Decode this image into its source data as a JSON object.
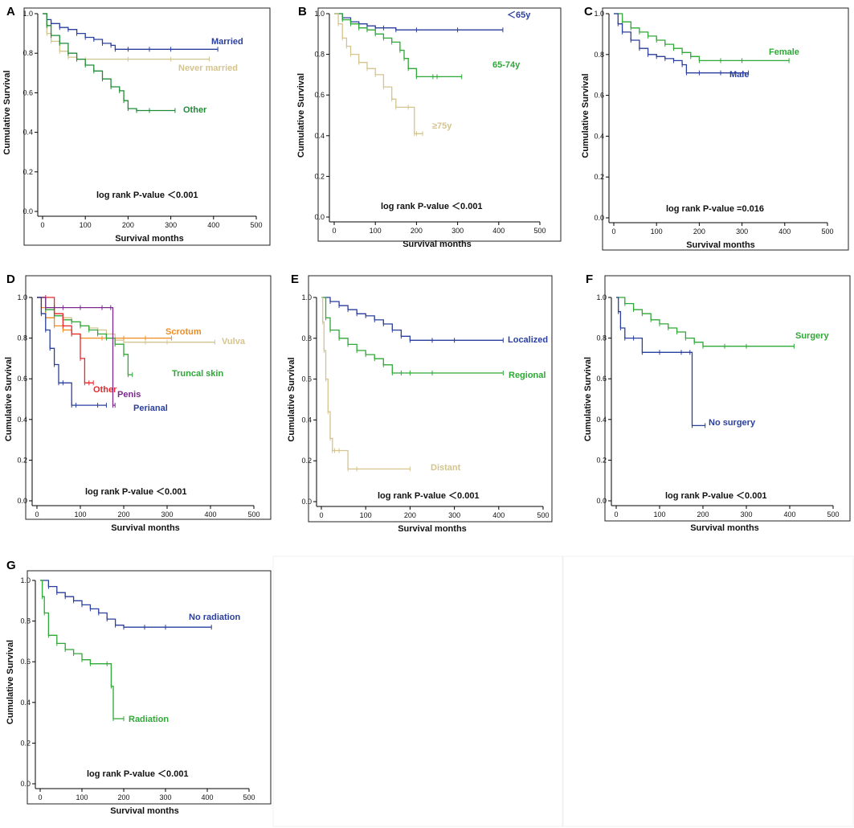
{
  "chart_data": [
    {
      "panel": "A",
      "type": "line",
      "xlabel": "Survival months",
      "ylabel": "Cumulative Survival",
      "xlim": [
        0,
        500
      ],
      "ylim": [
        0,
        1
      ],
      "xticks": [
        "0",
        "100",
        "200",
        "300",
        "400",
        "500"
      ],
      "yticks": [
        "0.0",
        "0.2",
        "0.4",
        "0.6",
        "0.8",
        "1.0"
      ],
      "pvalue_text": "log rank P-value ＜0.001",
      "series": [
        {
          "name": "Married",
          "color": "#2a3f9e",
          "x": [
            0,
            10,
            20,
            40,
            60,
            80,
            100,
            120,
            140,
            160,
            170,
            200,
            250,
            300,
            410
          ],
          "y": [
            1,
            0.97,
            0.95,
            0.93,
            0.92,
            0.9,
            0.88,
            0.87,
            0.85,
            0.84,
            0.82,
            0.82,
            0.82,
            0.82,
            0.82
          ]
        },
        {
          "name": "Never married",
          "color": "#d4c48e",
          "x": [
            0,
            10,
            20,
            40,
            60,
            80,
            100,
            200,
            300,
            390
          ],
          "y": [
            1,
            0.9,
            0.86,
            0.81,
            0.78,
            0.77,
            0.77,
            0.77,
            0.77,
            0.77
          ]
        },
        {
          "name": "Other",
          "color": "#1e8c36",
          "x": [
            0,
            10,
            20,
            40,
            60,
            80,
            100,
            120,
            140,
            160,
            180,
            190,
            200,
            220,
            250,
            310
          ],
          "y": [
            1,
            0.94,
            0.89,
            0.85,
            0.8,
            0.77,
            0.74,
            0.71,
            0.67,
            0.63,
            0.61,
            0.56,
            0.52,
            0.51,
            0.51,
            0.51
          ]
        }
      ]
    },
    {
      "panel": "B",
      "type": "line",
      "xlabel": "Survival months",
      "ylabel": "Cumulative Survival",
      "xlim": [
        0,
        500
      ],
      "ylim": [
        0,
        1
      ],
      "xticks": [
        "0",
        "100",
        "200",
        "300",
        "400",
        "500"
      ],
      "yticks": [
        "0.0",
        "0.2",
        "0.4",
        "0.6",
        "0.8",
        "1.0"
      ],
      "pvalue_text": "log rank P-value ＜0.001",
      "series": [
        {
          "name": "＜65y",
          "color": "#2a3f9e",
          "x": [
            0,
            20,
            40,
            60,
            80,
            100,
            120,
            150,
            200,
            300,
            410
          ],
          "y": [
            1,
            0.98,
            0.96,
            0.95,
            0.94,
            0.93,
            0.93,
            0.92,
            0.92,
            0.92,
            0.92
          ]
        },
        {
          "name": "65-74y",
          "color": "#2ea836",
          "x": [
            0,
            20,
            40,
            60,
            80,
            100,
            120,
            140,
            160,
            170,
            180,
            200,
            240,
            250,
            310
          ],
          "y": [
            1,
            0.97,
            0.95,
            0.93,
            0.92,
            0.9,
            0.88,
            0.86,
            0.82,
            0.78,
            0.73,
            0.69,
            0.69,
            0.69,
            0.69
          ]
        },
        {
          "name": "≥75y",
          "color": "#d4c48e",
          "x": [
            0,
            10,
            20,
            30,
            40,
            60,
            80,
            100,
            120,
            140,
            150,
            180,
            195,
            200,
            215
          ],
          "y": [
            1,
            0.95,
            0.88,
            0.84,
            0.8,
            0.76,
            0.73,
            0.7,
            0.64,
            0.58,
            0.54,
            0.54,
            0.41,
            0.41,
            0.41
          ]
        }
      ]
    },
    {
      "panel": "C",
      "type": "line",
      "xlabel": "Survival months",
      "ylabel": "Cumulative Survival",
      "xlim": [
        0,
        500
      ],
      "ylim": [
        0,
        1
      ],
      "xticks": [
        "0",
        "100",
        "200",
        "300",
        "400",
        "500"
      ],
      "yticks": [
        "0.0",
        "0.2",
        "0.4",
        "0.6",
        "0.8",
        "1.0"
      ],
      "pvalue_text": "log rank P-value =0.016",
      "series": [
        {
          "name": "Female",
          "color": "#2ea836",
          "x": [
            0,
            20,
            40,
            60,
            80,
            100,
            120,
            140,
            160,
            180,
            200,
            250,
            300,
            410
          ],
          "y": [
            1,
            0.96,
            0.93,
            0.91,
            0.89,
            0.87,
            0.85,
            0.83,
            0.81,
            0.79,
            0.77,
            0.77,
            0.77,
            0.77
          ]
        },
        {
          "name": "Male",
          "color": "#2a3f9e",
          "x": [
            0,
            10,
            20,
            40,
            60,
            80,
            100,
            120,
            140,
            160,
            170,
            200,
            250,
            315
          ],
          "y": [
            1,
            0.95,
            0.91,
            0.87,
            0.83,
            0.8,
            0.79,
            0.78,
            0.77,
            0.75,
            0.71,
            0.71,
            0.71,
            0.71
          ]
        }
      ]
    },
    {
      "panel": "D",
      "type": "line",
      "xlabel": "Survival months",
      "ylabel": "Cumulative Survival",
      "xlim": [
        0,
        500
      ],
      "ylim": [
        0,
        1
      ],
      "xticks": [
        "0",
        "100",
        "200",
        "300",
        "400",
        "500"
      ],
      "yticks": [
        "0.0",
        "0.2",
        "0.4",
        "0.6",
        "0.8",
        "1.0"
      ],
      "pvalue_text": "log rank P-value ＜0.001",
      "series": [
        {
          "name": "Scrotum",
          "color": "#f08c1e",
          "x": [
            0,
            10,
            20,
            40,
            60,
            80,
            100,
            150,
            200,
            250,
            310
          ],
          "y": [
            1,
            0.95,
            0.9,
            0.86,
            0.84,
            0.82,
            0.8,
            0.8,
            0.8,
            0.8,
            0.8
          ]
        },
        {
          "name": "Vulva",
          "color": "#d4c48e",
          "x": [
            0,
            20,
            40,
            60,
            80,
            100,
            120,
            140,
            160,
            180,
            200,
            250,
            300,
            410
          ],
          "y": [
            1,
            0.95,
            0.92,
            0.9,
            0.88,
            0.86,
            0.85,
            0.84,
            0.82,
            0.79,
            0.78,
            0.78,
            0.78,
            0.78
          ]
        },
        {
          "name": "Truncal skin",
          "color": "#2ea836",
          "x": [
            0,
            20,
            40,
            60,
            80,
            100,
            120,
            140,
            160,
            180,
            200,
            210,
            220
          ],
          "y": [
            1,
            0.94,
            0.91,
            0.89,
            0.88,
            0.86,
            0.84,
            0.82,
            0.8,
            0.77,
            0.72,
            0.62,
            0.62
          ]
        },
        {
          "name": "Other",
          "color": "#e8282d",
          "x": [
            0,
            20,
            40,
            60,
            80,
            100,
            110,
            120,
            130
          ],
          "y": [
            1,
            1,
            0.92,
            0.86,
            0.82,
            0.7,
            0.58,
            0.58,
            0.58
          ]
        },
        {
          "name": "Penis",
          "color": "#7a2a8c",
          "x": [
            0,
            20,
            40,
            60,
            100,
            150,
            170,
            175,
            180
          ],
          "y": [
            1,
            0.95,
            0.95,
            0.95,
            0.95,
            0.95,
            0.95,
            0.47,
            0.47
          ]
        },
        {
          "name": "Perianal",
          "color": "#2a3f9e",
          "x": [
            0,
            10,
            20,
            30,
            40,
            50,
            60,
            80,
            90,
            140,
            160
          ],
          "y": [
            1,
            0.92,
            0.84,
            0.75,
            0.67,
            0.58,
            0.58,
            0.47,
            0.47,
            0.47,
            0.47
          ]
        }
      ]
    },
    {
      "panel": "E",
      "type": "line",
      "xlabel": "Survival months",
      "ylabel": "Cumulative Survival",
      "xlim": [
        0,
        500
      ],
      "ylim": [
        0,
        1
      ],
      "xticks": [
        "0",
        "100",
        "200",
        "300",
        "400",
        "500"
      ],
      "yticks": [
        "0.0",
        "0.2",
        "0.4",
        "0.6",
        "0.8",
        "1.0"
      ],
      "pvalue_text": "log rank P-value ＜0.001",
      "series": [
        {
          "name": "Localized",
          "color": "#2a3f9e",
          "x": [
            0,
            20,
            40,
            60,
            80,
            100,
            120,
            140,
            160,
            180,
            200,
            250,
            300,
            410
          ],
          "y": [
            1,
            0.98,
            0.96,
            0.94,
            0.92,
            0.91,
            0.89,
            0.87,
            0.84,
            0.81,
            0.79,
            0.79,
            0.79,
            0.79
          ]
        },
        {
          "name": "Regional",
          "color": "#2ea836",
          "x": [
            0,
            10,
            20,
            40,
            60,
            80,
            100,
            120,
            140,
            160,
            180,
            200,
            250,
            410
          ],
          "y": [
            1,
            0.9,
            0.84,
            0.8,
            0.77,
            0.74,
            0.72,
            0.7,
            0.67,
            0.63,
            0.63,
            0.63,
            0.63,
            0.63
          ]
        },
        {
          "name": "Distant",
          "color": "#d4c48e",
          "x": [
            0,
            3,
            6,
            10,
            15,
            20,
            25,
            30,
            40,
            60,
            80,
            200
          ],
          "y": [
            1,
            0.88,
            0.74,
            0.6,
            0.44,
            0.31,
            0.25,
            0.25,
            0.25,
            0.16,
            0.16,
            0.16
          ]
        }
      ]
    },
    {
      "panel": "F",
      "type": "line",
      "xlabel": "Survival months",
      "ylabel": "Cumulative Survival",
      "xlim": [
        0,
        500
      ],
      "ylim": [
        0,
        1
      ],
      "xticks": [
        "0",
        "100",
        "200",
        "300",
        "400",
        "500"
      ],
      "yticks": [
        "0.0",
        "0.2",
        "0.4",
        "0.6",
        "0.8",
        "1.0"
      ],
      "pvalue_text": "log rank P-value ＜0.001",
      "series": [
        {
          "name": "Surgery",
          "color": "#2ea836",
          "x": [
            0,
            20,
            40,
            60,
            80,
            100,
            120,
            140,
            160,
            180,
            200,
            250,
            300,
            410
          ],
          "y": [
            1,
            0.97,
            0.94,
            0.92,
            0.89,
            0.87,
            0.85,
            0.83,
            0.8,
            0.78,
            0.76,
            0.76,
            0.76,
            0.76
          ]
        },
        {
          "name": "No surgery",
          "color": "#2a3f9e",
          "x": [
            0,
            5,
            10,
            20,
            40,
            60,
            100,
            150,
            170,
            175,
            205
          ],
          "y": [
            1,
            0.93,
            0.85,
            0.8,
            0.8,
            0.73,
            0.73,
            0.73,
            0.73,
            0.37,
            0.37
          ]
        }
      ]
    },
    {
      "panel": "G",
      "type": "line",
      "xlabel": "Survival months",
      "ylabel": "Cumulative Survival",
      "xlim": [
        0,
        500
      ],
      "ylim": [
        0,
        1
      ],
      "xticks": [
        "0",
        "100",
        "200",
        "300",
        "400",
        "500"
      ],
      "yticks": [
        "0.0",
        "0.2",
        "0.4",
        "0.6",
        "0.8",
        "1.0"
      ],
      "pvalue_text": "log rank P-value ＜0.001",
      "series": [
        {
          "name": "No radiation",
          "color": "#2a3f9e",
          "x": [
            0,
            20,
            40,
            60,
            80,
            100,
            120,
            140,
            160,
            180,
            200,
            250,
            300,
            410
          ],
          "y": [
            1,
            0.97,
            0.94,
            0.92,
            0.9,
            0.88,
            0.86,
            0.84,
            0.81,
            0.78,
            0.77,
            0.77,
            0.77,
            0.77
          ]
        },
        {
          "name": "Radiation",
          "color": "#2ea836",
          "x": [
            0,
            5,
            10,
            20,
            40,
            60,
            80,
            100,
            120,
            160,
            170,
            175,
            200
          ],
          "y": [
            1,
            0.92,
            0.84,
            0.73,
            0.69,
            0.66,
            0.64,
            0.61,
            0.59,
            0.59,
            0.48,
            0.32,
            0.32
          ]
        }
      ]
    }
  ]
}
